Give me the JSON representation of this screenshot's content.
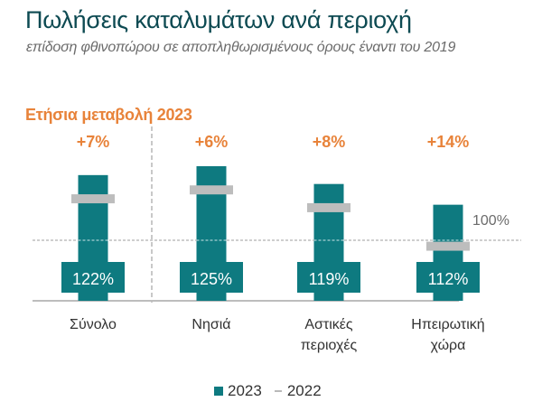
{
  "header": {
    "title": "Πωλήσεις καταλυμάτων ανά περιοχή",
    "subtitle": "επίδοση φθινοπώρου σε αποπληθωρισμένους όρους έναντι του 2019"
  },
  "annual_change_label": "Ετήσια μεταβολή 2023",
  "colors": {
    "bar_2023": "#0e7a80",
    "marker_2022": "#bdbdbd",
    "change_text": "#e8833a",
    "title": "#0d4a52"
  },
  "chart_data": {
    "type": "bar",
    "title": "Πωλήσεις καταλυμάτων ανά περιοχή",
    "subtitle": "επίδοση φθινοπώρου σε αποπληθωρισμένους όρους έναντι του 2019",
    "categories": [
      "Σύνολο",
      "Νησιά",
      "Αστικές περιοχές",
      "Ηπειρωτική χώρα"
    ],
    "category_lines": [
      [
        "Σύνολο"
      ],
      [
        "Νησιά"
      ],
      [
        "Αστικές",
        "περιοχές"
      ],
      [
        "Ηπειρωτική",
        "χώρα"
      ]
    ],
    "series": [
      {
        "name": "2023",
        "type": "bar",
        "values": [
          122,
          125,
          119,
          112
        ],
        "labels": [
          "122%",
          "125%",
          "119%",
          "112%"
        ]
      },
      {
        "name": "2022",
        "type": "marker",
        "values": [
          114,
          117,
          111,
          98
        ]
      }
    ],
    "annual_change": {
      "label": "Ετήσια μεταβολή 2023",
      "values": [
        "+7%",
        "+6%",
        "+8%",
        "+14%"
      ]
    },
    "reference_line": {
      "value": 100,
      "label": "100%"
    },
    "unit": "% of 2019",
    "legend": {
      "entries": [
        "2023",
        "2022"
      ],
      "position": "bottom"
    },
    "xlabel": "",
    "ylabel": "",
    "ylim": [
      80,
      130
    ],
    "grid": false
  }
}
